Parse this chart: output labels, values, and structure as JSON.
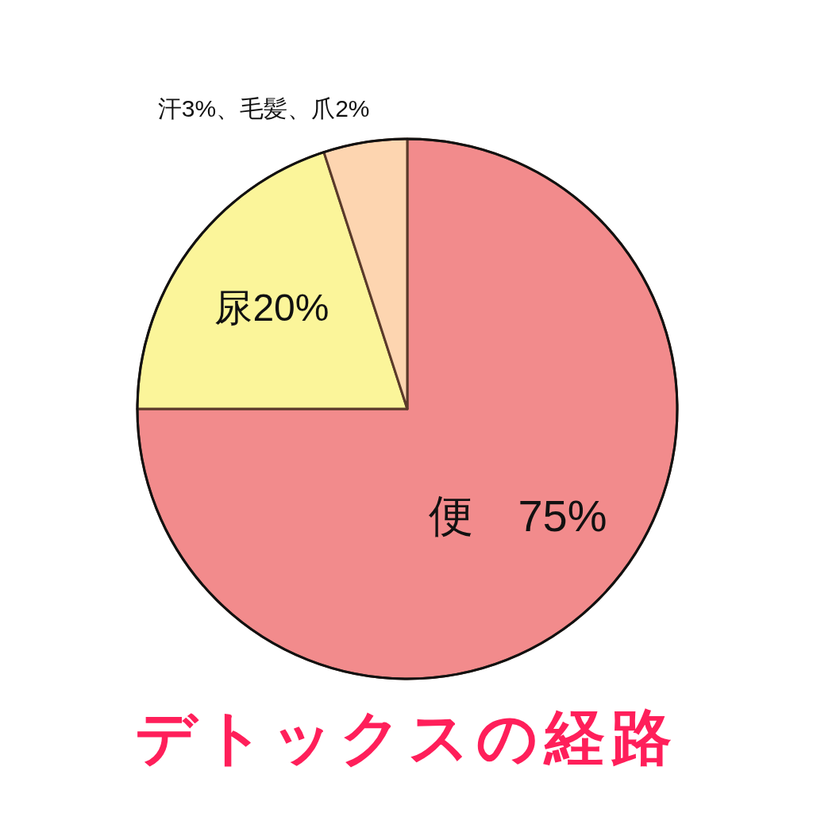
{
  "chart_data": {
    "type": "pie",
    "title": "デトックスの経路",
    "categories": [
      "便　75%",
      "尿20%",
      "汗3%、毛髪、爪2%"
    ],
    "values": [
      75,
      20,
      5
    ],
    "colors": [
      "#f28b8c",
      "#fbf59a",
      "#fdd5b0"
    ]
  }
}
